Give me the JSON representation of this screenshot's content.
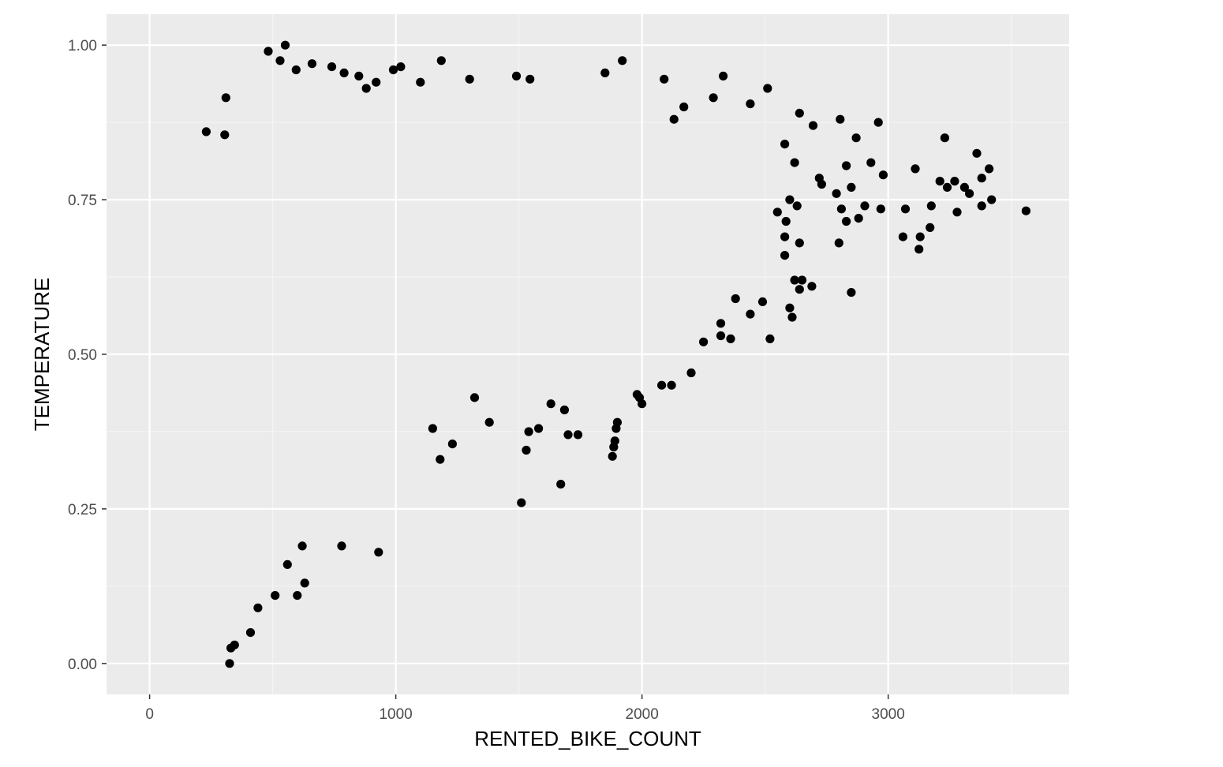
{
  "colors": {
    "panel_background": "#ebebeb",
    "grid_major": "#ffffff",
    "grid_minor": "#f5f5f5",
    "point": "#000000",
    "tick_text": "#4d4d4d",
    "axis_title": "#000000"
  },
  "chart_data": {
    "type": "scatter",
    "title": "",
    "xlabel": "RENTED_BIKE_COUNT",
    "ylabel": "TEMPERATURE",
    "xlim": [
      -175,
      3735
    ],
    "ylim": [
      -0.05,
      1.05
    ],
    "x_ticks": [
      0,
      1000,
      2000,
      3000
    ],
    "x_tick_labels": [
      "0",
      "1000",
      "2000",
      "3000"
    ],
    "y_ticks": [
      0.0,
      0.25,
      0.5,
      0.75,
      1.0
    ],
    "y_tick_labels": [
      "0.00",
      "0.25",
      "0.50",
      "0.75",
      "1.00"
    ],
    "grid": true,
    "legend": "none",
    "points": [
      [
        551,
        1.0
      ],
      [
        482,
        0.99
      ],
      [
        530,
        0.975
      ],
      [
        595,
        0.96
      ],
      [
        660,
        0.97
      ],
      [
        740,
        0.965
      ],
      [
        790,
        0.955
      ],
      [
        850,
        0.95
      ],
      [
        920,
        0.94
      ],
      [
        990,
        0.96
      ],
      [
        1020,
        0.965
      ],
      [
        1100,
        0.94
      ],
      [
        1185,
        0.975
      ],
      [
        1300,
        0.945
      ],
      [
        1490,
        0.95
      ],
      [
        1545,
        0.945
      ],
      [
        1920,
        0.975
      ],
      [
        1850,
        0.955
      ],
      [
        2090,
        0.945
      ],
      [
        2330,
        0.95
      ],
      [
        2440,
        0.905
      ],
      [
        2510,
        0.93
      ],
      [
        2290,
        0.915
      ],
      [
        2640,
        0.89
      ],
      [
        2695,
        0.87
      ],
      [
        2805,
        0.88
      ],
      [
        2960,
        0.875
      ],
      [
        2580,
        0.84
      ],
      [
        2620,
        0.81
      ],
      [
        2870,
        0.85
      ],
      [
        2830,
        0.805
      ],
      [
        2930,
        0.81
      ],
      [
        3230,
        0.85
      ],
      [
        3360,
        0.825
      ],
      [
        3410,
        0.8
      ],
      [
        3110,
        0.8
      ],
      [
        2980,
        0.79
      ],
      [
        3210,
        0.78
      ],
      [
        3270,
        0.78
      ],
      [
        3310,
        0.77
      ],
      [
        3380,
        0.785
      ],
      [
        3175,
        0.74
      ],
      [
        3240,
        0.77
      ],
      [
        3280,
        0.73
      ],
      [
        3330,
        0.76
      ],
      [
        3420,
        0.75
      ],
      [
        3380,
        0.74
      ],
      [
        3560,
        0.732
      ],
      [
        3070,
        0.735
      ],
      [
        2970,
        0.735
      ],
      [
        2905,
        0.74
      ],
      [
        2850,
        0.77
      ],
      [
        2810,
        0.735
      ],
      [
        2790,
        0.76
      ],
      [
        2830,
        0.715
      ],
      [
        2880,
        0.72
      ],
      [
        2800,
        0.68
      ],
      [
        3060,
        0.69
      ],
      [
        3130,
        0.69
      ],
      [
        3125,
        0.67
      ],
      [
        3170,
        0.705
      ],
      [
        2720,
        0.785
      ],
      [
        2730,
        0.775
      ],
      [
        2630,
        0.74
      ],
      [
        2600,
        0.75
      ],
      [
        2585,
        0.715
      ],
      [
        2550,
        0.73
      ],
      [
        2580,
        0.69
      ],
      [
        2640,
        0.68
      ],
      [
        2580,
        0.66
      ],
      [
        2620,
        0.62
      ],
      [
        2650,
        0.62
      ],
      [
        2690,
        0.61
      ],
      [
        2640,
        0.605
      ],
      [
        2600,
        0.575
      ],
      [
        2610,
        0.56
      ],
      [
        2850,
        0.6
      ],
      [
        2520,
        0.525
      ],
      [
        2490,
        0.585
      ],
      [
        2440,
        0.565
      ],
      [
        2380,
        0.59
      ],
      [
        2360,
        0.525
      ],
      [
        2320,
        0.55
      ],
      [
        2320,
        0.53
      ],
      [
        2250,
        0.52
      ],
      [
        2200,
        0.47
      ],
      [
        2120,
        0.45
      ],
      [
        2080,
        0.45
      ],
      [
        2000,
        0.42
      ],
      [
        1990,
        0.43
      ],
      [
        1980,
        0.435
      ],
      [
        1900,
        0.39
      ],
      [
        1895,
        0.38
      ],
      [
        1890,
        0.36
      ],
      [
        1885,
        0.35
      ],
      [
        1880,
        0.335
      ],
      [
        1740,
        0.37
      ],
      [
        1700,
        0.37
      ],
      [
        1685,
        0.41
      ],
      [
        1670,
        0.29
      ],
      [
        1630,
        0.42
      ],
      [
        1580,
        0.38
      ],
      [
        1540,
        0.375
      ],
      [
        1530,
        0.345
      ],
      [
        1510,
        0.26
      ],
      [
        1380,
        0.39
      ],
      [
        1320,
        0.43
      ],
      [
        1230,
        0.355
      ],
      [
        1180,
        0.33
      ],
      [
        1150,
        0.38
      ],
      [
        930,
        0.18
      ],
      [
        780,
        0.19
      ],
      [
        620,
        0.19
      ],
      [
        560,
        0.16
      ],
      [
        630,
        0.13
      ],
      [
        600,
        0.11
      ],
      [
        510,
        0.11
      ],
      [
        440,
        0.09
      ],
      [
        410,
        0.05
      ],
      [
        345,
        0.03
      ],
      [
        330,
        0.025
      ],
      [
        325,
        0.0
      ],
      [
        310,
        0.915
      ],
      [
        305,
        0.855
      ],
      [
        230,
        0.86
      ],
      [
        880,
        0.93
      ],
      [
        2130,
        0.88
      ],
      [
        2170,
        0.9
      ]
    ]
  }
}
